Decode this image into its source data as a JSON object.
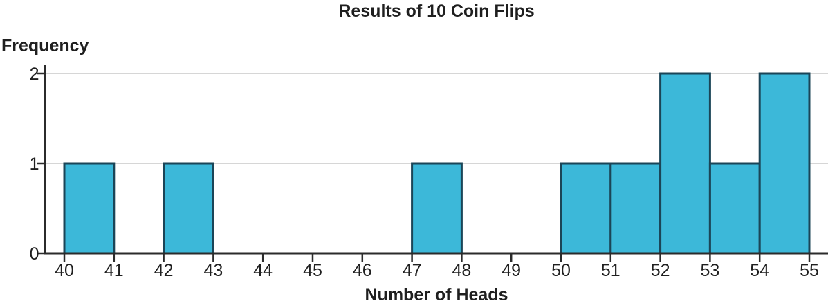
{
  "chart_data": {
    "type": "bar",
    "subtype": "histogram",
    "title": "Results of 10 Coin Flips",
    "xlabel": "Number of Heads",
    "ylabel": "Frequency",
    "bin_width": 1,
    "bins": [
      {
        "start": 40,
        "end": 41,
        "frequency": 1
      },
      {
        "start": 41,
        "end": 42,
        "frequency": 0
      },
      {
        "start": 42,
        "end": 43,
        "frequency": 1
      },
      {
        "start": 43,
        "end": 44,
        "frequency": 0
      },
      {
        "start": 44,
        "end": 45,
        "frequency": 0
      },
      {
        "start": 45,
        "end": 46,
        "frequency": 0
      },
      {
        "start": 46,
        "end": 47,
        "frequency": 0
      },
      {
        "start": 47,
        "end": 48,
        "frequency": 1
      },
      {
        "start": 48,
        "end": 49,
        "frequency": 0
      },
      {
        "start": 49,
        "end": 50,
        "frequency": 0
      },
      {
        "start": 50,
        "end": 51,
        "frequency": 1
      },
      {
        "start": 51,
        "end": 52,
        "frequency": 1
      },
      {
        "start": 52,
        "end": 53,
        "frequency": 2
      },
      {
        "start": 53,
        "end": 54,
        "frequency": 1
      },
      {
        "start": 54,
        "end": 55,
        "frequency": 2
      }
    ],
    "x_ticks": [
      "40",
      "41",
      "42",
      "43",
      "44",
      "45",
      "46",
      "47",
      "48",
      "49",
      "50",
      "51",
      "52",
      "53",
      "54",
      "55"
    ],
    "y_ticks": [
      "0",
      "1",
      "2"
    ],
    "xlim": [
      40,
      55
    ],
    "ylim": [
      0,
      2
    ],
    "grid": "horizontal",
    "legend": "none",
    "colors": {
      "bar_fill": "#3cb8d9",
      "bar_stroke": "#1b4557",
      "axis": "#2b2b2b",
      "gridline": "#d6d6d6",
      "text": "#1f1f1f"
    }
  }
}
